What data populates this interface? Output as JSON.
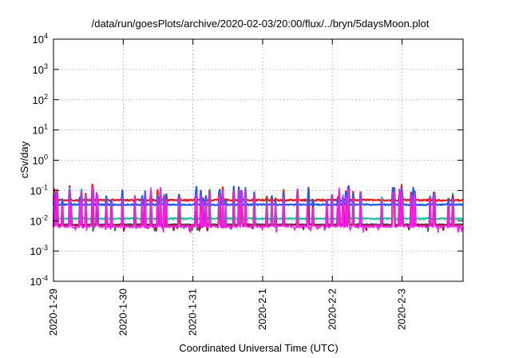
{
  "chart_data": {
    "type": "line",
    "title": "/data/run/goesPlots/archive/2020-02-03/20:00/flux/../bryn/5daysMoon.plot",
    "xlabel": "Coordinated Universal Time (UTC)",
    "ylabel": "cSv/day",
    "yscale": "log",
    "ylim": [
      0.0001,
      10000
    ],
    "xlim": [
      "2020-01-29T00:00",
      "2020-02-03T21:00"
    ],
    "grid": true,
    "legend": "none",
    "y_ticks": [
      {
        "mant": "10",
        "exp": "-4"
      },
      {
        "mant": "10",
        "exp": "-3"
      },
      {
        "mant": "10",
        "exp": "-2"
      },
      {
        "mant": "10",
        "exp": "-1"
      },
      {
        "mant": "10",
        "exp": "0"
      },
      {
        "mant": "10",
        "exp": "1"
      },
      {
        "mant": "10",
        "exp": "2"
      },
      {
        "mant": "10",
        "exp": "3"
      },
      {
        "mant": "10",
        "exp": "4"
      }
    ],
    "x_ticks": [
      "2020-1-29",
      "2020-1-30",
      "2020-1-31",
      "2020-2-1",
      "2020-2-2",
      "2020-2-3"
    ],
    "series": [
      {
        "color": "#e8201b",
        "base": 0.048,
        "spike_scale": 0.085,
        "noise": 0.12,
        "seed": 3
      },
      {
        "color": "#2e7d6b",
        "base": 0.0075,
        "spike_scale": 0.065,
        "noise": 0.08,
        "seed": 11
      },
      {
        "color": "#21c3a6",
        "base": 0.0118,
        "spike_scale": 0.07,
        "noise": 0.1,
        "seed": 7
      },
      {
        "color": "#a3173c",
        "base": 0.0072,
        "spike_scale": 0.06,
        "noise": 0.08,
        "seed": 19
      },
      {
        "color": "#1f5fe8",
        "base": 0.034,
        "spike_scale": 0.08,
        "noise": 0.1,
        "seed": 5
      },
      {
        "color": "#ff1bf0",
        "base": 0.0065,
        "spike_scale": 0.07,
        "noise": 0.18,
        "seed": 23
      }
    ]
  }
}
